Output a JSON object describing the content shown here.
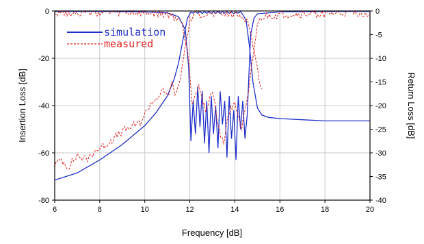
{
  "chart_data": {
    "type": "line",
    "xlabel": "Frequency [dB]",
    "ylabel_left": "Insertion Loss [dB]",
    "ylabel_right": "Return Loss [dB]",
    "xlim": [
      6,
      20
    ],
    "ylim_left": [
      -80,
      0
    ],
    "ylim_right": [
      -40,
      0
    ],
    "x_ticks": [
      "6",
      "8",
      "10",
      "12",
      "14",
      "16",
      "18",
      "20"
    ],
    "y_ticks_left": [
      "0",
      "-20",
      "-40",
      "-60",
      "-80"
    ],
    "y_ticks_right": [
      "0",
      "-5",
      "-10",
      "-15",
      "-20",
      "-25",
      "-30",
      "-35",
      "-40"
    ],
    "grid": true,
    "legend_placement": "top-left",
    "colors": {
      "simulation": "#1f2fc9",
      "measured": "#e0201e",
      "grid": "#c8c8c8"
    },
    "series": [
      {
        "name": "simulation",
        "style": "solid",
        "color": "#1f2fc9",
        "curves": [
          {
            "label": "insertion",
            "x": [
              6,
              7,
              8,
              9,
              10,
              10.5,
              11,
              11.3,
              11.5,
              11.7,
              11.9,
              12.0,
              12.05,
              12.15,
              12.25,
              12.35,
              12.45,
              12.55,
              12.65,
              12.75,
              12.85,
              12.95,
              13.05,
              13.15,
              13.25,
              13.35,
              13.45,
              13.55,
              13.65,
              13.75,
              13.85,
              13.95,
              14.05,
              14.15,
              14.25,
              14.35,
              14.5,
              14.65,
              14.8,
              15.0,
              15.2,
              15.5,
              16,
              17,
              18,
              19,
              20
            ],
            "y": [
              -71.5,
              -68.5,
              -63,
              -56.5,
              -48.5,
              -43,
              -36,
              -29,
              -22,
              -12,
              -3,
              -1.2,
              -0.5,
              -0.9,
              -0.3,
              -1.0,
              -0.3,
              -1.1,
              -0.3,
              -1.0,
              -0.2,
              -1.1,
              -0.3,
              -1.0,
              -0.3,
              -1.1,
              -0.2,
              -0.9,
              -0.3,
              -1.0,
              -0.3,
              -1.2,
              -0.4,
              -0.9,
              -0.3,
              -1.5,
              -4,
              -15,
              -30,
              -41,
              -44,
              -45,
              -45.5,
              -46,
              -46.5,
              -46.5,
              -46.5
            ]
          },
          {
            "label": "return",
            "x": [
              6,
              8,
              10,
              11,
              11.5,
              11.8,
              11.95,
              12.05,
              12.15,
              12.25,
              12.35,
              12.45,
              12.55,
              12.65,
              12.75,
              12.85,
              12.95,
              13.05,
              13.15,
              13.25,
              13.35,
              13.45,
              13.55,
              13.65,
              13.75,
              13.85,
              13.95,
              14.05,
              14.15,
              14.25,
              14.35,
              14.45,
              14.55,
              14.7,
              14.85,
              15,
              16,
              18,
              20
            ],
            "y": [
              -0.1,
              -0.1,
              -0.2,
              -0.4,
              -1.2,
              -4,
              -12,
              -27.5,
              -19,
              -26,
              -16,
              -24.5,
              -17,
              -28,
              -19,
              -30,
              -18,
              -26,
              -20,
              -29,
              -17,
              -24,
              -19,
              -31,
              -18,
              -27,
              -21,
              -31.5,
              -18,
              -25,
              -19,
              -27,
              -22,
              -5,
              -1.5,
              -0.6,
              -0.2,
              -0.1,
              -0.1
            ]
          }
        ]
      },
      {
        "name": "measured",
        "style": "dashed",
        "color": "#e0201e",
        "curves": [
          {
            "label": "insertion",
            "x": [
              6,
              6.3,
              6.6,
              7,
              7.4,
              7.8,
              8.2,
              8.6,
              9,
              9.4,
              9.8,
              10.0,
              10.2,
              10.5,
              10.8,
              11,
              11.2,
              11.4,
              11.6,
              11.8,
              12.0,
              12.2,
              12.5,
              13,
              13.5,
              14,
              14.4,
              14.6,
              14.8,
              15.0,
              15.2
            ],
            "y": [
              -65,
              -63,
              -66,
              -61,
              -63,
              -59,
              -57,
              -54,
              -51,
              -49,
              -47,
              -44,
              -40,
              -37,
              -34,
              -36,
              -31,
              -36,
              -27,
              -15,
              -4,
              -1.5,
              -1.2,
              -1.4,
              -1.3,
              -1.5,
              -2.5,
              -5,
              -14,
              -25,
              -33
            ]
          },
          {
            "label": "return",
            "x": [
              6,
              8,
              10,
              11,
              11.6,
              11.9,
              12.1,
              12.4,
              12.7,
              13.0,
              13.3,
              13.5,
              13.7,
              14.0,
              14.3,
              14.6,
              14.8,
              15.0,
              15.2,
              15.4,
              15.6,
              15.7,
              15.8,
              16.0,
              16.3,
              16.6,
              17.0,
              17.4,
              17.8,
              18.2,
              18.6,
              19.0,
              19.4,
              19.8,
              20
            ],
            "y": [
              -0.3,
              -0.4,
              -0.5,
              -0.8,
              -2,
              -8,
              -19,
              -16,
              -21,
              -17,
              -25,
              -28,
              -22,
              -19,
              -25,
              -18,
              -10,
              -3,
              -1.5,
              -1.2,
              -1.0,
              -1.2,
              -1.0,
              -0.9,
              -0.8,
              -0.8,
              -0.7,
              -0.7,
              -0.6,
              -0.6,
              -0.6,
              -0.5,
              -0.5,
              -0.5,
              -0.5
            ]
          }
        ]
      }
    ]
  }
}
